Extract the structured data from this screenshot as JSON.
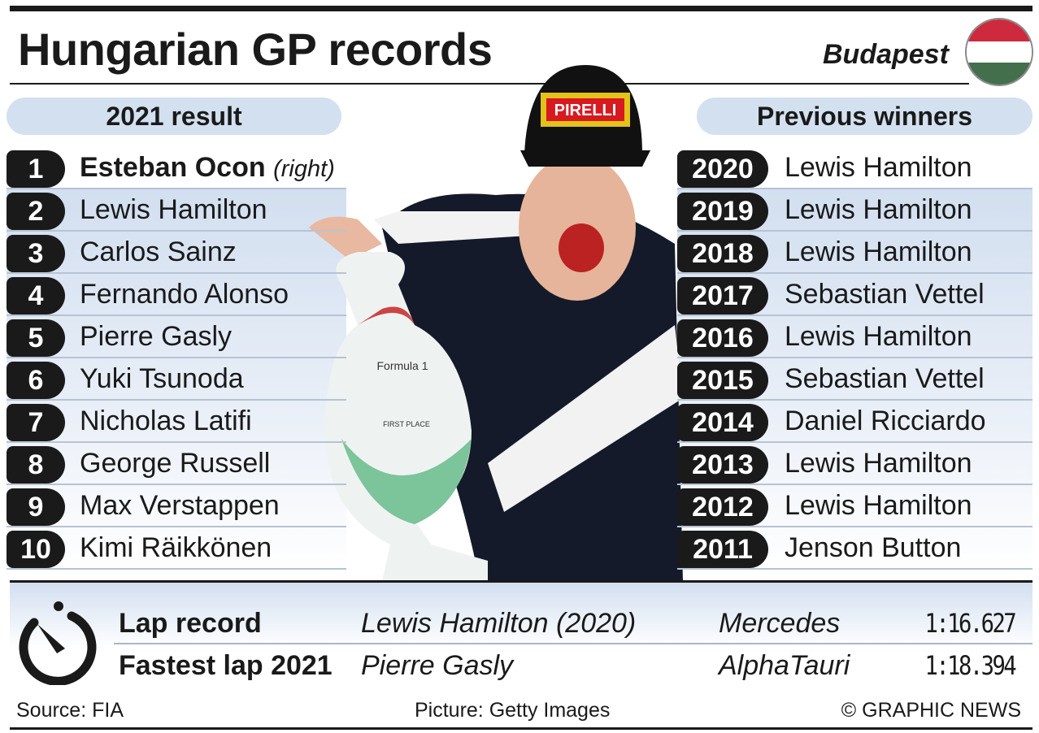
{
  "header": {
    "title": "Hungarian GP records",
    "city": "Budapest",
    "flag_colors": [
      "#cd2a3e",
      "#ffffff",
      "#436f4d"
    ]
  },
  "result": {
    "heading": "2021 result",
    "note": "(right)",
    "rows": [
      {
        "pos": "1",
        "name": "Esteban Ocon"
      },
      {
        "pos": "2",
        "name": "Lewis Hamilton"
      },
      {
        "pos": "3",
        "name": "Carlos Sainz"
      },
      {
        "pos": "4",
        "name": "Fernando Alonso"
      },
      {
        "pos": "5",
        "name": "Pierre Gasly"
      },
      {
        "pos": "6",
        "name": "Yuki Tsunoda"
      },
      {
        "pos": "7",
        "name": "Nicholas Latifi"
      },
      {
        "pos": "8",
        "name": "George Russell"
      },
      {
        "pos": "9",
        "name": "Max Verstappen"
      },
      {
        "pos": "10",
        "name": "Kimi Räikkönen"
      }
    ]
  },
  "winners": {
    "heading": "Previous winners",
    "rows": [
      {
        "year": "2020",
        "name": "Lewis Hamilton"
      },
      {
        "year": "2019",
        "name": "Lewis Hamilton"
      },
      {
        "year": "2018",
        "name": "Lewis Hamilton"
      },
      {
        "year": "2017",
        "name": "Sebastian Vettel"
      },
      {
        "year": "2016",
        "name": "Lewis Hamilton"
      },
      {
        "year": "2015",
        "name": "Sebastian Vettel"
      },
      {
        "year": "2014",
        "name": "Daniel Ricciardo"
      },
      {
        "year": "2013",
        "name": "Lewis Hamilton"
      },
      {
        "year": "2012",
        "name": "Lewis Hamilton"
      },
      {
        "year": "2011",
        "name": "Jenson Button"
      }
    ]
  },
  "photo": {
    "cap_text": "PIRELLI",
    "trophy_text": "Formula 1",
    "trophy_place": "FIRST PLACE"
  },
  "laps": [
    {
      "label": "Lap record",
      "driver": "Lewis Hamilton (2020)",
      "team": "Mercedes",
      "time": "1:16.627"
    },
    {
      "label": "Fastest lap 2021",
      "driver": "Pierre Gasly",
      "team": "AlphaTauri",
      "time": "1:18.394"
    }
  ],
  "footer": {
    "source": "Source: FIA",
    "picture": "Picture: Getty Images",
    "credit": "© GRAPHIC NEWS"
  },
  "icons": {
    "lap": "stopwatch-icon"
  },
  "colors": {
    "accent": "#d3e0f0",
    "badge": "#1a1a1a"
  }
}
